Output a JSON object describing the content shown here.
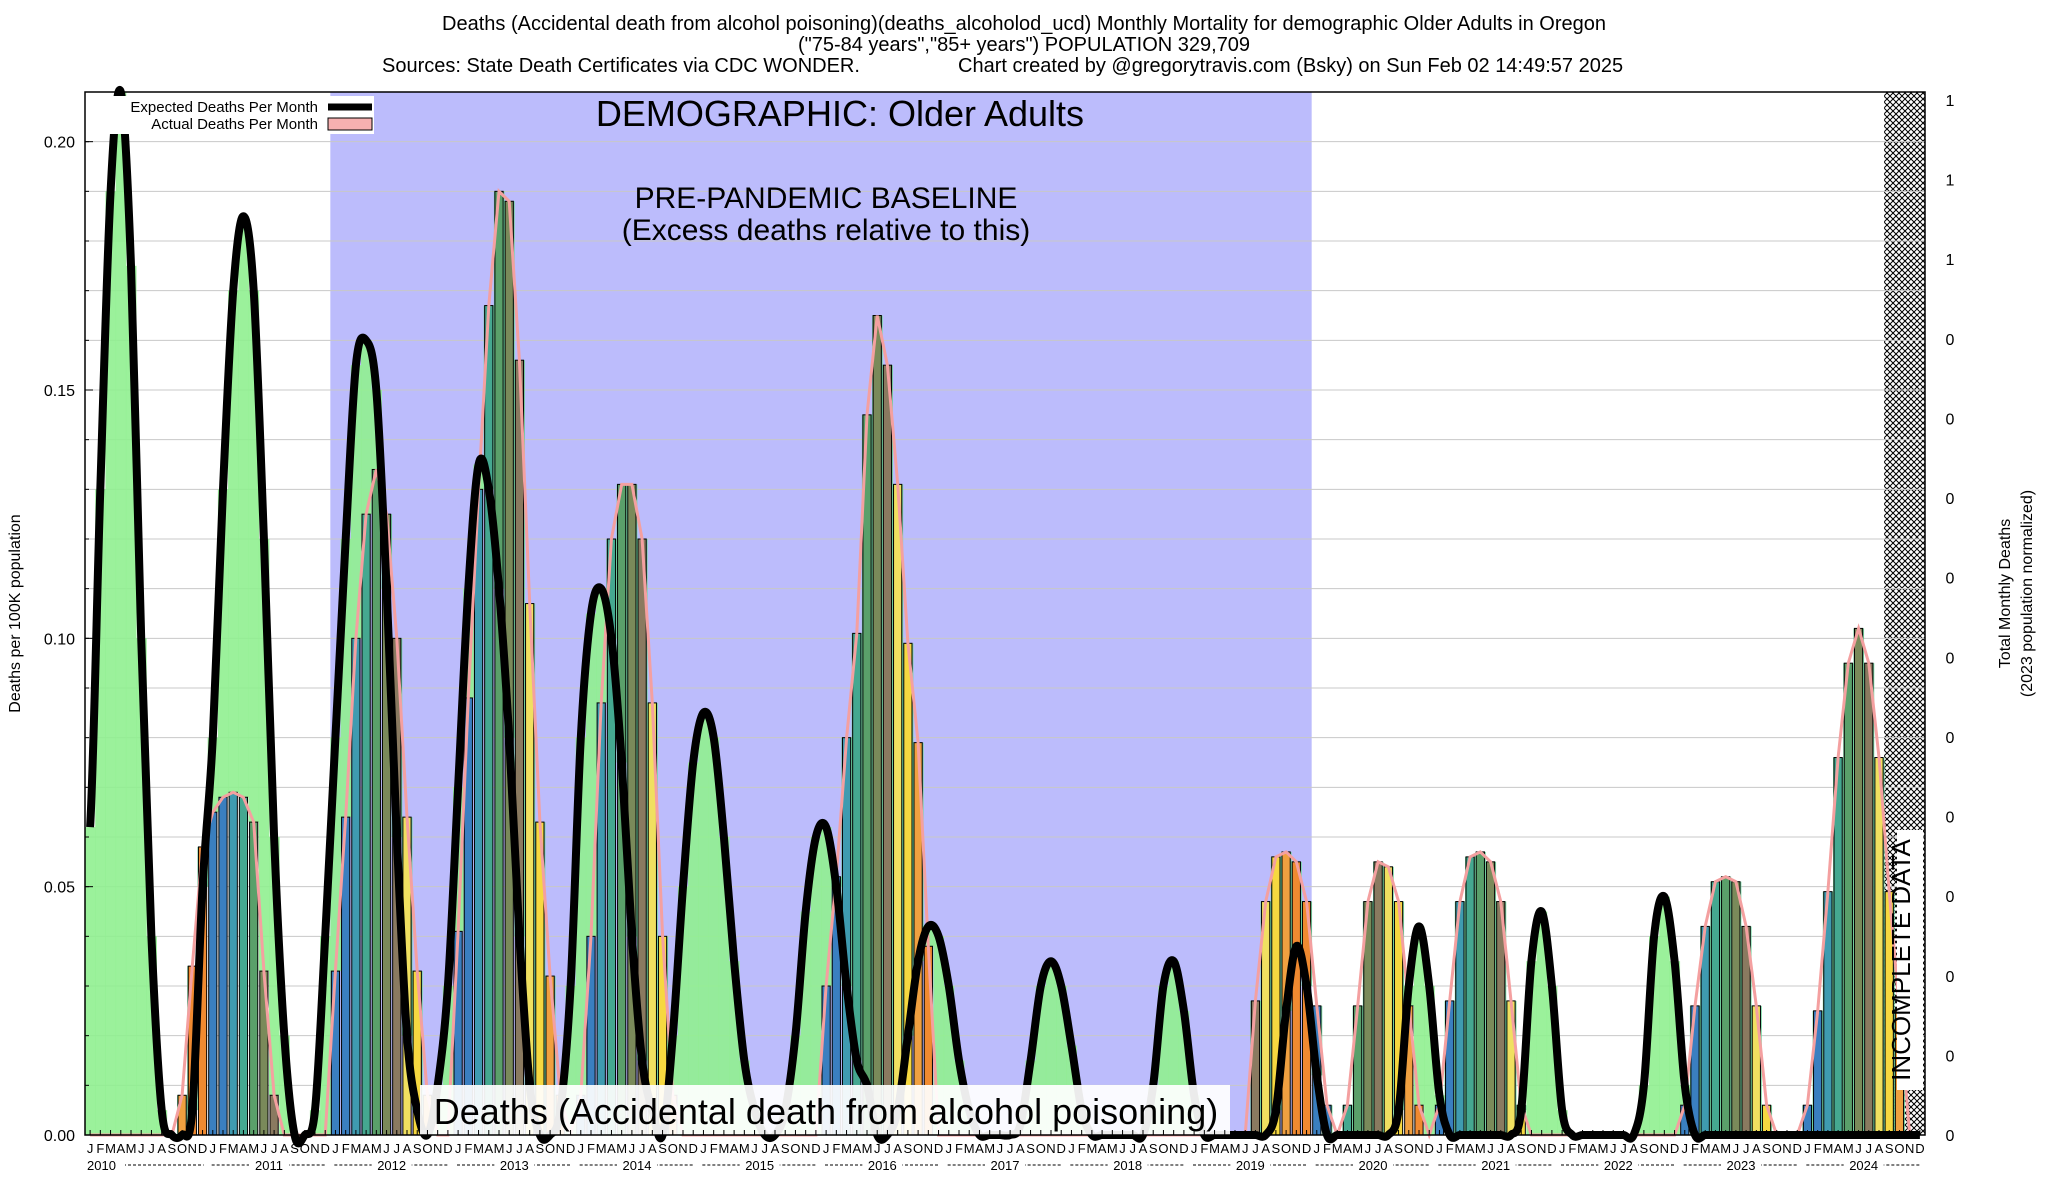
{
  "header": {
    "line1": "Deaths (Accidental death from alcohol poisoning)(deaths_alcoholod_ucd) Monthly Mortality for demographic Older Adults in Oregon",
    "line2": "(\"75-84 years\",\"85+ years\") POPULATION 329,709",
    "sources": "Sources: State Death Certificates via CDC WONDER.",
    "credit": "Chart created by @gregorytravis.com (Bsky) on Sun Feb 02 14:49:57 2025"
  },
  "chart_data": {
    "type": "bar",
    "title": "Deaths (Accidental death from alcohol poisoning)(deaths_alcoholod_ucd) Monthly Mortality for demographic Older Adults in Oregon",
    "ylabel": "Deaths per 100K population",
    "y2label": [
      "Total Monthly Deaths",
      "(2023 population normalized)"
    ],
    "ylim": [
      0,
      0.21
    ],
    "y_ticks": [
      0.0,
      0.05,
      0.1,
      0.15,
      0.2
    ],
    "y_tick_labels": [
      "0.00",
      "0.05",
      "0.10",
      "0.15",
      "0.20"
    ],
    "y2_tick_labels": [
      "0",
      "0",
      "0",
      "0",
      "0",
      "0",
      "0",
      "0",
      "0",
      "0",
      "0",
      "1",
      "1",
      "1"
    ],
    "month_letters": [
      "J",
      "F",
      "M",
      "A",
      "M",
      "J",
      "J",
      "A",
      "S",
      "O",
      "N",
      "D"
    ],
    "years": [
      "2010",
      "2011",
      "2012",
      "2013",
      "2014",
      "2015",
      "2016",
      "2017",
      "2018",
      "2019",
      "2020",
      "2021",
      "2022",
      "2023",
      "2024"
    ],
    "legend": [
      "Expected Deaths Per Month",
      "Actual Deaths Per Month"
    ],
    "legend_position": "top-left",
    "annotations": {
      "demographic": "DEMOGRAPHIC: Older Adults",
      "baseline_1": "PRE-PANDEMIC BASELINE",
      "baseline_2": "(Excess deaths relative to this)",
      "incomplete": "INCOMPLETE DATA",
      "bottom": "Deaths (Accidental death from alcohol poisoning)"
    },
    "baseline_period": [
      "2012-01",
      "2019-12"
    ],
    "incomplete_period": [
      "2024-09",
      "2024-12"
    ],
    "colors": {
      "expected_line": "#000000",
      "actual_line": "#f4a0a0",
      "baseline_band": "#bcbcfc",
      "above_fill": "#90f090",
      "excess_fill": "#70d8a0"
    },
    "series": [
      {
        "name": "Expected Deaths Per Month",
        "values": [
          0.062,
          0.13,
          0.19,
          0.21,
          0.175,
          0.1,
          0.04,
          0.005,
          0,
          0,
          0.005,
          0.05,
          0.08,
          0.13,
          0.17,
          0.185,
          0.17,
          0.12,
          0.06,
          0.02,
          0,
          0,
          0.005,
          0.04,
          0.08,
          0.12,
          0.155,
          0.16,
          0.15,
          0.11,
          0.06,
          0.02,
          0.005,
          0,
          0.01,
          0.03,
          0.07,
          0.11,
          0.135,
          0.13,
          0.11,
          0.08,
          0.04,
          0.01,
          0,
          0,
          0.005,
          0.03,
          0.08,
          0.105,
          0.11,
          0.1,
          0.075,
          0.04,
          0.015,
          0.005,
          0,
          0.02,
          0.05,
          0.075,
          0.085,
          0.08,
          0.06,
          0.035,
          0.015,
          0.005,
          0,
          0,
          0.005,
          0.02,
          0.045,
          0.06,
          0.062,
          0.05,
          0.03,
          0.015,
          0.01,
          0,
          0,
          0.005,
          0.02,
          0.035,
          0.042,
          0.04,
          0.03,
          0.015,
          0.005,
          0,
          0,
          0,
          0,
          0.002,
          0.015,
          0.03,
          0.035,
          0.03,
          0.018,
          0.005,
          0,
          0,
          0,
          0,
          0,
          0,
          0.01,
          0.03,
          0.035,
          0.025,
          0.008,
          0,
          0,
          0,
          0,
          0,
          0,
          0,
          0.005,
          0.025,
          0.038,
          0.03,
          0.012,
          0,
          0,
          0,
          0,
          0,
          0,
          0,
          0.005,
          0.03,
          0.042,
          0.03,
          0.008,
          0,
          0,
          0,
          0,
          0,
          0,
          0,
          0.005,
          0.035,
          0.045,
          0.03,
          0.005,
          0,
          0,
          0,
          0,
          0,
          0,
          0,
          0.01,
          0.04,
          0.048,
          0.035,
          0.01,
          0,
          0,
          0,
          0,
          0,
          0,
          0,
          0,
          0,
          0,
          0,
          0,
          0,
          0,
          0,
          0,
          0,
          0,
          0,
          0,
          0,
          0,
          0
        ]
      },
      {
        "name": "Actual Deaths Per Month",
        "values": [
          0,
          0,
          0,
          0,
          0,
          0,
          0,
          0,
          0,
          0.008,
          0.034,
          0.058,
          0.065,
          0.068,
          0.069,
          0.068,
          0.063,
          0.033,
          0.008,
          0,
          0,
          0,
          0,
          0,
          0.033,
          0.064,
          0.1,
          0.125,
          0.134,
          0.125,
          0.1,
          0.064,
          0.033,
          0.008,
          0,
          0,
          0.041,
          0.088,
          0.13,
          0.167,
          0.19,
          0.188,
          0.156,
          0.107,
          0.063,
          0.032,
          0.008,
          0,
          0.008,
          0.04,
          0.087,
          0.12,
          0.131,
          0.131,
          0.12,
          0.087,
          0.04,
          0.008,
          0,
          0,
          0,
          0,
          0,
          0,
          0,
          0,
          0,
          0,
          0,
          0,
          0,
          0,
          0.03,
          0.052,
          0.08,
          0.101,
          0.145,
          0.165,
          0.155,
          0.131,
          0.099,
          0.079,
          0.038,
          0,
          0,
          0,
          0,
          0,
          0,
          0,
          0,
          0,
          0,
          0,
          0,
          0,
          0,
          0,
          0,
          0,
          0,
          0,
          0,
          0,
          0,
          0,
          0,
          0,
          0,
          0,
          0,
          0,
          0,
          0,
          0.027,
          0.047,
          0.056,
          0.057,
          0.055,
          0.047,
          0.026,
          0.006,
          0,
          0.006,
          0.026,
          0.047,
          0.055,
          0.054,
          0.047,
          0.026,
          0.006,
          0,
          0.006,
          0.027,
          0.047,
          0.056,
          0.057,
          0.055,
          0.047,
          0.027,
          0.006,
          0,
          0,
          0,
          0,
          0,
          0,
          0,
          0,
          0,
          0,
          0,
          0,
          0,
          0,
          0,
          0.006,
          0.026,
          0.042,
          0.051,
          0.052,
          0.051,
          0.042,
          0.026,
          0.006,
          0,
          0,
          0,
          0.006,
          0.025,
          0.049,
          0.076,
          0.095,
          0.102,
          0.095,
          0.076,
          0.049,
          0.025,
          0,
          0
        ]
      }
    ]
  }
}
